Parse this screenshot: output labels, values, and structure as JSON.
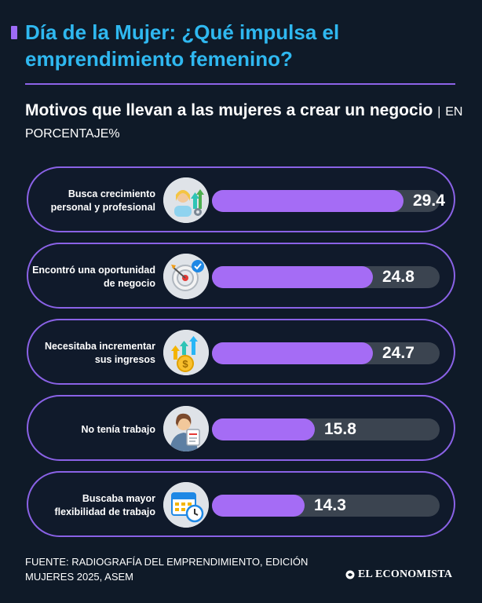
{
  "header": {
    "title": "Día de la Mujer: ¿Qué impulsa el emprendimiento femenino?",
    "subtitle": "Motivos que llevan a las mujeres a crear un negocio",
    "separator": "|",
    "unit": "EN PORCENTAJE%"
  },
  "chart_data": {
    "type": "bar",
    "orientation": "horizontal",
    "title": "Motivos que llevan a las mujeres a crear un negocio",
    "unit": "EN PORCENTAJE%",
    "xlim": [
      0,
      35
    ],
    "categories": [
      "Busca crecimiento personal y profesional",
      "Encontró una oportunidad de negocio",
      "Necesitaba incrementar sus ingresos",
      "No tenía trabajo",
      "Buscaba mayor flexibilidad de trabajo"
    ],
    "values": [
      29.4,
      24.8,
      24.7,
      15.8,
      14.3
    ],
    "value_labels": [
      "29.4",
      "24.8",
      "24.7",
      "15.8",
      "14.3"
    ],
    "icons": [
      "growth-person-icon",
      "target-check-icon",
      "money-growth-icon",
      "job-seeker-icon",
      "calendar-clock-icon"
    ]
  },
  "colors": {
    "background": "#0f1a28",
    "title": "#2fb8f0",
    "accent": "#a56cf5",
    "track": "#3b4450"
  },
  "footer": {
    "source": "FUENTE: RADIOGRAFÍA DEL EMPRENDIMIENTO, EDICIÓN MUJERES 2025, ASEM",
    "brand": "EL ECONOMISTA"
  }
}
